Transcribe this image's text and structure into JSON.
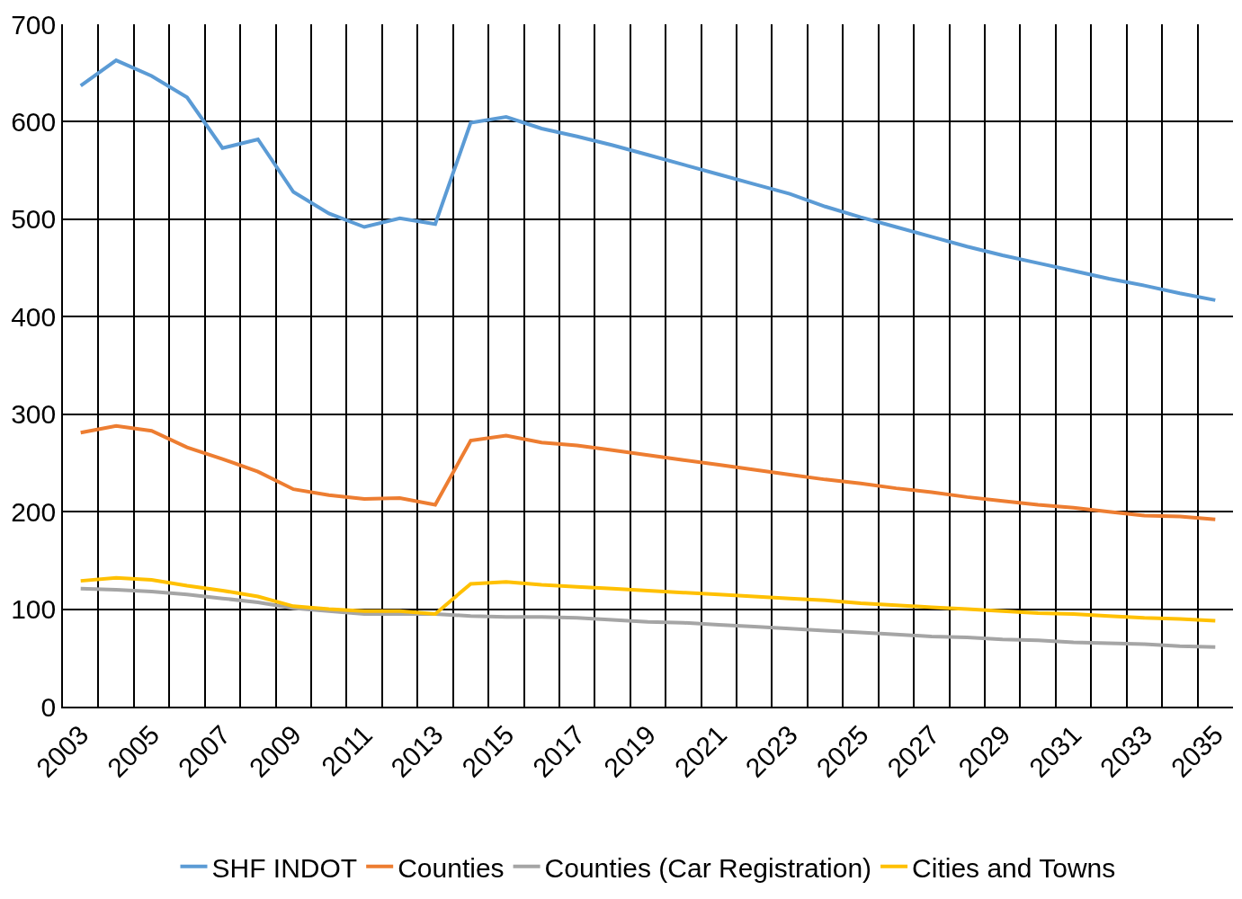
{
  "chart_data": {
    "type": "line",
    "categories": [
      "2003",
      null,
      "2005",
      null,
      "2007",
      null,
      "2009",
      null,
      "2011",
      null,
      "2013",
      null,
      "2015",
      null,
      "2017",
      null,
      "2019",
      null,
      "2021",
      null,
      "2023",
      null,
      "2025",
      null,
      "2027",
      null,
      "2029",
      null,
      "2031",
      null,
      "2033",
      null,
      "2035"
    ],
    "series": [
      {
        "name": "SHF INDOT",
        "color": "#5b9bd5",
        "values": [
          637,
          663,
          647,
          625,
          573,
          582,
          528,
          506,
          492,
          501,
          495,
          599,
          605,
          593,
          585,
          576,
          566,
          556,
          546,
          536,
          526,
          513,
          502,
          492,
          482,
          472,
          463,
          455,
          447,
          439,
          432,
          424,
          417
        ]
      },
      {
        "name": "Counties",
        "color": "#ed7d31",
        "values": [
          281,
          288,
          283,
          266,
          254,
          241,
          223,
          217,
          213,
          214,
          207,
          273,
          278,
          271,
          268,
          263,
          258,
          253,
          248,
          243,
          238,
          233,
          229,
          224,
          220,
          215,
          211,
          207,
          204,
          200,
          196,
          195,
          192
        ]
      },
      {
        "name": "Counties (Car Registration)",
        "color": "#a5a5a5",
        "values": [
          121,
          120,
          118,
          115,
          111,
          107,
          101,
          98,
          95,
          95,
          95,
          93,
          92,
          92,
          91,
          89,
          87,
          86,
          84,
          82,
          80,
          78,
          76,
          74,
          72,
          71,
          69,
          68,
          66,
          65,
          64,
          62,
          61
        ]
      },
      {
        "name": "Cities and Towns",
        "color": "#ffc000",
        "values": [
          129,
          132,
          130,
          124,
          119,
          113,
          103,
          100,
          98,
          98,
          95,
          126,
          128,
          125,
          123,
          121,
          119,
          117,
          115,
          113,
          111,
          109,
          106,
          104,
          102,
          100,
          98,
          96,
          95,
          93,
          91,
          90,
          88
        ]
      }
    ],
    "ylim": [
      0,
      700
    ],
    "yticks": [
      0,
      100,
      200,
      300,
      400,
      500,
      600,
      700
    ],
    "grid": true,
    "legend": "bottom",
    "marker": "none",
    "line_style": "solid"
  }
}
